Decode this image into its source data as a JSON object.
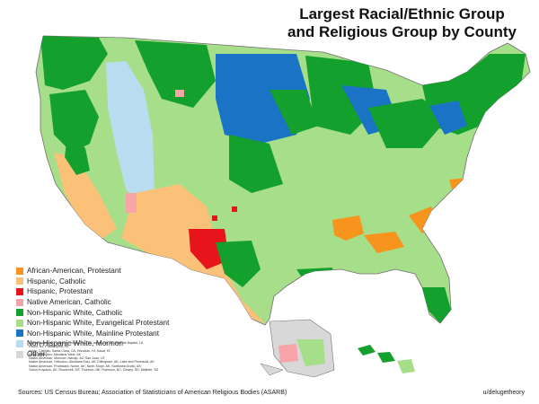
{
  "title_line1": "Largest Racial/Ethnic Group",
  "title_line2": "and Religious Group by County",
  "colors": {
    "african_american_protestant": "#f7941d",
    "hispanic_catholic": "#fbc179",
    "hispanic_protestant": "#e8141b",
    "native_american_catholic": "#f7a4a8",
    "white_catholic": "#14a02d",
    "white_evangelical": "#a6de8a",
    "white_mainline": "#1a73c4",
    "white_mormon": "#b9dcf0",
    "other": "#d8d8d8"
  },
  "legend": [
    {
      "label": "African-American, Protestant",
      "color": "#f7941d"
    },
    {
      "label": "Hispanic, Catholic",
      "color": "#fbc179"
    },
    {
      "label": "Hispanic, Protestant",
      "color": "#e8141b"
    },
    {
      "label": "Native American, Catholic",
      "color": "#f7a4a8"
    },
    {
      "label": "Non-Hispanic White, Catholic",
      "color": "#14a02d"
    },
    {
      "label": "Non-Hispanic White, Evangelical Protestant",
      "color": "#a6de8a"
    },
    {
      "label": "Non-Hispanic White, Mainline Protestant",
      "color": "#1a73c4"
    },
    {
      "label": "Non-Hispanic White, Mormon",
      "color": "#b9dcf0"
    },
    {
      "label": "Other:",
      "color": "#d8d8d8"
    }
  ],
  "other_notes": [
    "African-American, Catholic: Orleans, LA; St. James, LA; St. John the Baptist, LA",
    "Essex, NJ; Philadelphia, PA",
    "Asian, Catholic: Santa Clara, CA; Honolulu, HI; Kauai, HI",
    "Asian, Orthodox: Aleutians West, AK",
    "Native American, Mormon: Navajo, AZ; San Juan, UT",
    "Native American, Orthodox: Aleutians East, AK; Dillingham, AK; Lake and Peninsula, AK",
    "Native American, Protestant: Nome, AK; North Slope, AK; Northwest Arctic, AK;",
    "Yukon-Koyukuk, AK; Roosevelt, MT; Thurston, NE; Robeson, NC; Dewey, SD; Mellette, SD"
  ],
  "sources": "Sources:  US Census Bureau; Association of Statisticians of American Religious Bodies (ASARB)",
  "credit": "u/delugetheory"
}
